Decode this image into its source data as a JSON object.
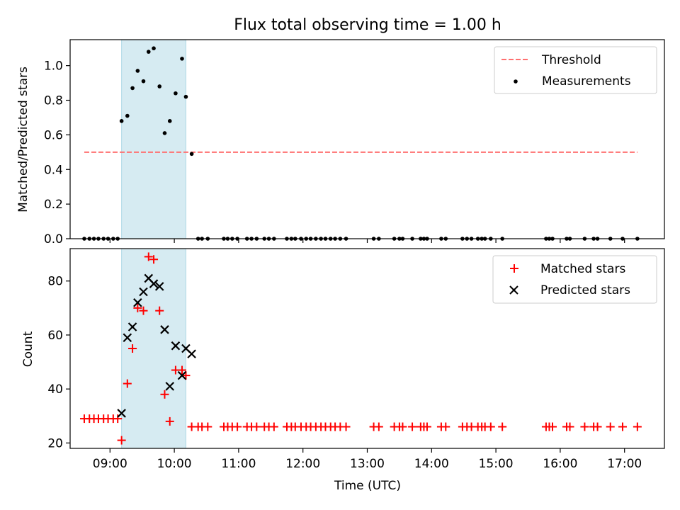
{
  "title": "Flux total observing time = 1.00 h",
  "colors": {
    "threshold": "#ff7070",
    "measurements": "#000000",
    "matched": "#ff0000",
    "predicted": "#000000",
    "span": "#add8e6"
  },
  "chart_data": [
    {
      "type": "scatter",
      "ylabel": "Matched/Predicted stars",
      "xlim": [
        8.38,
        17.62
      ],
      "ylim": [
        0,
        1.15
      ],
      "yticks": [
        0.0,
        0.2,
        0.4,
        0.6,
        0.8,
        1.0
      ],
      "ytick_labels": [
        "0.0",
        "0.2",
        "0.4",
        "0.6",
        "0.8",
        "1.0"
      ],
      "xtick_labels_shown": false,
      "highlight_span": [
        9.18,
        10.18
      ],
      "legend_position": "upper right",
      "series": [
        {
          "name": "Threshold",
          "kind": "dashed-line",
          "x": [
            8.6,
            17.2
          ],
          "y": [
            0.5,
            0.5
          ]
        },
        {
          "name": "Measurements",
          "kind": "dot",
          "x": [
            8.6,
            8.68,
            8.75,
            8.82,
            8.9,
            8.97,
            9.05,
            9.12,
            9.18,
            9.27,
            9.35,
            9.43,
            9.52,
            9.6,
            9.68,
            9.77,
            9.85,
            9.93,
            10.02,
            10.12,
            10.18,
            10.27,
            10.37,
            10.43,
            10.52,
            10.77,
            10.83,
            10.9,
            10.98,
            11.13,
            11.2,
            11.28,
            11.4,
            11.47,
            11.55,
            11.75,
            11.82,
            11.88,
            11.97,
            12.05,
            12.12,
            12.2,
            12.28,
            12.35,
            12.43,
            12.5,
            12.58,
            12.67,
            13.1,
            13.18,
            13.42,
            13.5,
            13.55,
            13.7,
            13.83,
            13.88,
            13.93,
            14.15,
            14.22,
            14.48,
            14.55,
            14.62,
            14.72,
            14.78,
            14.83,
            14.92,
            15.1,
            15.78,
            15.83,
            15.88,
            16.1,
            16.15,
            16.38,
            16.52,
            16.58,
            16.78,
            16.97,
            17.2
          ],
          "y": [
            0,
            0,
            0,
            0,
            0,
            0,
            0,
            0,
            0.68,
            0.71,
            0.87,
            0.97,
            0.91,
            1.08,
            1.1,
            0.88,
            0.61,
            0.68,
            0.84,
            1.04,
            0.82,
            0.49,
            0,
            0,
            0,
            0,
            0,
            0,
            0,
            0,
            0,
            0,
            0,
            0,
            0,
            0,
            0,
            0,
            0,
            0,
            0,
            0,
            0,
            0,
            0,
            0,
            0,
            0,
            0,
            0,
            0,
            0,
            0,
            0,
            0,
            0,
            0,
            0,
            0,
            0,
            0,
            0,
            0,
            0,
            0,
            0,
            0,
            0,
            0,
            0,
            0,
            0,
            0,
            0,
            0,
            0,
            0,
            0
          ]
        }
      ]
    },
    {
      "type": "scatter",
      "xlabel": "Time (UTC)",
      "ylabel": "Count",
      "xlim": [
        8.38,
        17.62
      ],
      "ylim": [
        18,
        92
      ],
      "yticks": [
        20,
        40,
        60,
        80
      ],
      "ytick_labels": [
        "20",
        "40",
        "60",
        "80"
      ],
      "xticks": [
        9,
        10,
        11,
        12,
        13,
        14,
        15,
        16,
        17
      ],
      "xtick_labels": [
        "09:00",
        "10:00",
        "11:00",
        "12:00",
        "13:00",
        "14:00",
        "15:00",
        "16:00",
        "17:00"
      ],
      "highlight_span": [
        9.18,
        10.18
      ],
      "legend_position": "upper right",
      "series": [
        {
          "name": "Matched stars",
          "marker": "plus",
          "x": [
            8.6,
            8.68,
            8.75,
            8.82,
            8.9,
            8.97,
            9.05,
            9.12,
            9.18,
            9.27,
            9.35,
            9.43,
            9.52,
            9.6,
            9.68,
            9.77,
            9.85,
            9.93,
            10.02,
            10.12,
            10.18,
            10.27,
            10.37,
            10.43,
            10.52,
            10.77,
            10.83,
            10.9,
            10.98,
            11.13,
            11.2,
            11.28,
            11.4,
            11.47,
            11.55,
            11.75,
            11.82,
            11.88,
            11.97,
            12.05,
            12.12,
            12.2,
            12.28,
            12.35,
            12.43,
            12.5,
            12.58,
            12.67,
            13.1,
            13.18,
            13.42,
            13.5,
            13.55,
            13.7,
            13.83,
            13.88,
            13.93,
            14.15,
            14.22,
            14.48,
            14.55,
            14.62,
            14.72,
            14.78,
            14.83,
            14.92,
            15.1,
            15.78,
            15.83,
            15.88,
            16.1,
            16.15,
            16.38,
            16.52,
            16.58,
            16.78,
            16.97,
            17.2
          ],
          "y": [
            29,
            29,
            29,
            29,
            29,
            29,
            29,
            29,
            21,
            42,
            55,
            70,
            69,
            89,
            88,
            69,
            38,
            28,
            47,
            47,
            45,
            26,
            26,
            26,
            26,
            26,
            26,
            26,
            26,
            26,
            26,
            26,
            26,
            26,
            26,
            26,
            26,
            26,
            26,
            26,
            26,
            26,
            26,
            26,
            26,
            26,
            26,
            26,
            26,
            26,
            26,
            26,
            26,
            26,
            26,
            26,
            26,
            26,
            26,
            26,
            26,
            26,
            26,
            26,
            26,
            26,
            26,
            26,
            26,
            26,
            26,
            26,
            26,
            26,
            26,
            26,
            26,
            26
          ]
        },
        {
          "name": "Predicted stars",
          "marker": "x",
          "x": [
            9.18,
            9.27,
            9.35,
            9.43,
            9.52,
            9.6,
            9.68,
            9.77,
            9.85,
            9.93,
            10.02,
            10.12,
            10.18,
            10.27
          ],
          "y": [
            31,
            59,
            63,
            72,
            76,
            81,
            79,
            78,
            62,
            41,
            56,
            45,
            55,
            53
          ]
        }
      ]
    }
  ]
}
